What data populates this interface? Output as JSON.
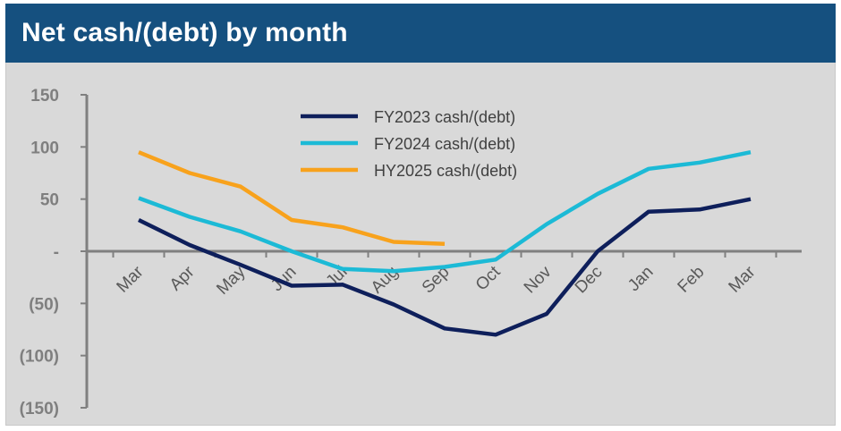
{
  "title": "Net cash/(debt) by month",
  "chart_data": {
    "type": "line",
    "title": "Net cash/(debt) by month",
    "xlabel": "",
    "ylabel": "",
    "categories": [
      "Mar",
      "Apr",
      "May",
      "Jun",
      "Jul",
      "Aug",
      "Sep",
      "Oct",
      "Nov",
      "Dec",
      "Jan",
      "Feb",
      "Mar"
    ],
    "y_ticks": [
      150,
      100,
      50,
      0,
      -50,
      -100,
      -150
    ],
    "y_tick_labels": [
      "150",
      "100",
      "50",
      "-",
      "(50)",
      "(100)",
      "(150)"
    ],
    "ylim": [
      -150,
      150
    ],
    "grid": false,
    "legend_position": "top-center",
    "series": [
      {
        "name": "FY2023 cash/(debt)",
        "color": "#0e1f5b",
        "values": [
          30,
          6,
          -13,
          -33,
          -32,
          -51,
          -74,
          -80,
          -60,
          0,
          38,
          40,
          50
        ]
      },
      {
        "name": "FY2024 cash/(debt)",
        "color": "#1cbad6",
        "values": [
          51,
          33,
          19,
          0,
          -17,
          -19,
          -15,
          -8,
          26,
          55,
          79,
          85,
          95
        ]
      },
      {
        "name": "HY2025 cash/(debt)",
        "color": "#f8a21c",
        "values": [
          95,
          75,
          62,
          30,
          23,
          9,
          7,
          null,
          null,
          null,
          null,
          null,
          null
        ]
      }
    ]
  }
}
